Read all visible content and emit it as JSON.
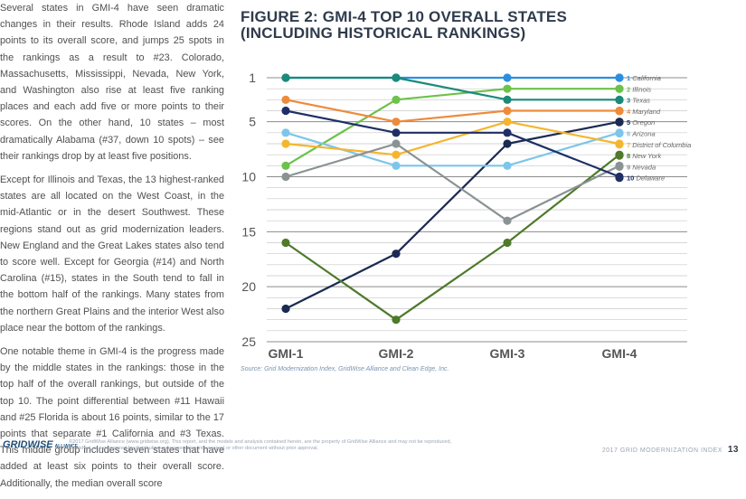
{
  "body_text": {
    "paragraphs": [
      "Several states in GMI-4 have seen dramatic changes in their results. Rhode Island adds 24 points to its overall score, and jumps 25 spots in the rankings as a result to #23. Colorado, Massachusetts, Mississippi, Nevada, New York, and Washington also rise at least five ranking places and each add five or more points to their scores. On the other hand, 10 states – most dramatically Alabama (#37, down 10 spots) – see their rankings drop by at least five positions.",
      "Except for Illinois and Texas, the 13 highest-ranked states are all located on the West Coast, in the mid-Atlantic or in the desert Southwest. These regions stand out as grid modernization leaders. New England and the Great Lakes states also tend to score well. Except for Georgia (#14) and North Carolina (#15), states in the South tend to fall in the bottom half of the rankings. Many states from the northern Great Plains and the interior West also place near the bottom of the rankings.",
      "One notable theme in GMI-4 is the progress made by the middle states in the rankings: those in the top half of the overall rankings, but outside of the top 10. The point differential between #11 Hawaii and #25 Florida is about 16 points, similar to the 17 points that separate #1 California and #3 Texas. This middle group includes seven states that have added at least six points to their overall score. Additionally, the median overall score"
    ]
  },
  "figure": {
    "title_line1": "FIGURE 2: GMI-4 TOP 10 OVERALL STATES",
    "title_line2": "(INCLUDING HISTORICAL RANKINGS)",
    "source": "Source: Grid Modernization Index, GridWise Alliance and Clean Edge, Inc."
  },
  "chart_data": {
    "type": "line",
    "title": "FIGURE 2: GMI-4 TOP 10 OVERALL STATES (INCLUDING HISTORICAL RANKINGS)",
    "x": [
      "GMI-1",
      "GMI-2",
      "GMI-3",
      "GMI-4"
    ],
    "y_tick_labels": [
      "1",
      "5",
      "10",
      "15",
      "20",
      "25"
    ],
    "y_ticks": [
      1,
      5,
      10,
      15,
      20,
      25
    ],
    "ylim": [
      1,
      25
    ],
    "y_inverted": true,
    "grid": "horizontal",
    "legend": "right",
    "series": [
      {
        "rank": "1",
        "name": "California",
        "color": "#2b8fe0",
        "values": [
          1,
          1,
          1,
          1
        ]
      },
      {
        "rank": "2",
        "name": "Illinois",
        "color": "#6cc24a",
        "values": [
          9,
          3,
          2,
          2
        ]
      },
      {
        "rank": "3",
        "name": "Texas",
        "color": "#1a8a7a",
        "values": [
          1,
          1,
          3,
          3
        ]
      },
      {
        "rank": "4",
        "name": "Maryland",
        "color": "#ee8a3c",
        "values": [
          3,
          5,
          4,
          4
        ]
      },
      {
        "rank": "5",
        "name": "Oregon",
        "color": "#1a2a52",
        "values": [
          22,
          17,
          7,
          5
        ]
      },
      {
        "rank": "6",
        "name": "Arizona",
        "color": "#7dc5ea",
        "values": [
          6,
          9,
          9,
          6
        ]
      },
      {
        "rank": "7",
        "name": "District of Columbia",
        "color": "#f5b52e",
        "values": [
          7,
          8,
          5,
          7
        ]
      },
      {
        "rank": "8",
        "name": "New York",
        "color": "#4e7a2a",
        "values": [
          16,
          23,
          16,
          8
        ]
      },
      {
        "rank": "9",
        "name": "Nevada",
        "color": "#8a9294",
        "values": [
          10,
          7,
          14,
          9
        ]
      },
      {
        "rank": "10",
        "name": "Delaware",
        "color": "#1f2f66",
        "values": [
          4,
          6,
          6,
          10
        ]
      }
    ]
  },
  "footer": {
    "logo_text": "GRIDWISE",
    "logo_sub": "ALLIANCE",
    "copyright": "©2017 GridWise Alliance (www.gridwise.org). This report, and the models and analysis contained herein, are the property of GridWise Alliance and may not be reproduced, published, or summarized for distribution or incorporation into a report or other document without prior approval.",
    "doc_name": "2017 GRID MODERNIZATION INDEX",
    "page_number": "13"
  }
}
